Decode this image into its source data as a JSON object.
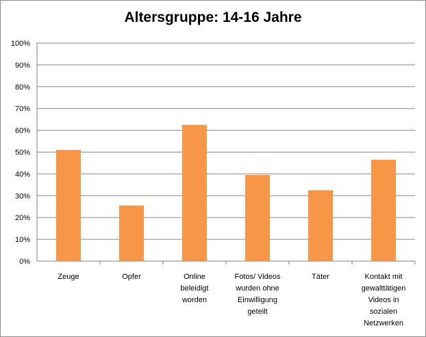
{
  "chart_data": {
    "type": "bar",
    "title": "Altersgruppe: 14-16 Jahre",
    "categories": [
      [
        "Zeuge"
      ],
      [
        "Opfer"
      ],
      [
        "Online",
        "beleidigt",
        "worden"
      ],
      [
        "Fotos/ Videos",
        "wurden ohne",
        "Einwilligung",
        "geteilt"
      ],
      [
        "Täter"
      ],
      [
        "Kontakt mit",
        "gewalttätigen",
        "Videos in",
        "sozialen",
        "Netzwerken"
      ]
    ],
    "values": [
      51,
      25.5,
      62.5,
      39.5,
      32.5,
      46.5
    ],
    "value_unit": "%",
    "ylim": [
      0,
      100
    ],
    "yticks": [
      "0%",
      "10%",
      "20%",
      "30%",
      "40%",
      "50%",
      "60%",
      "70%",
      "80%",
      "90%",
      "100%"
    ],
    "grid": true,
    "legend": "none",
    "colors": {
      "bar": "#F79646",
      "grid": "#888888",
      "axis": "#7f7f7f"
    }
  }
}
